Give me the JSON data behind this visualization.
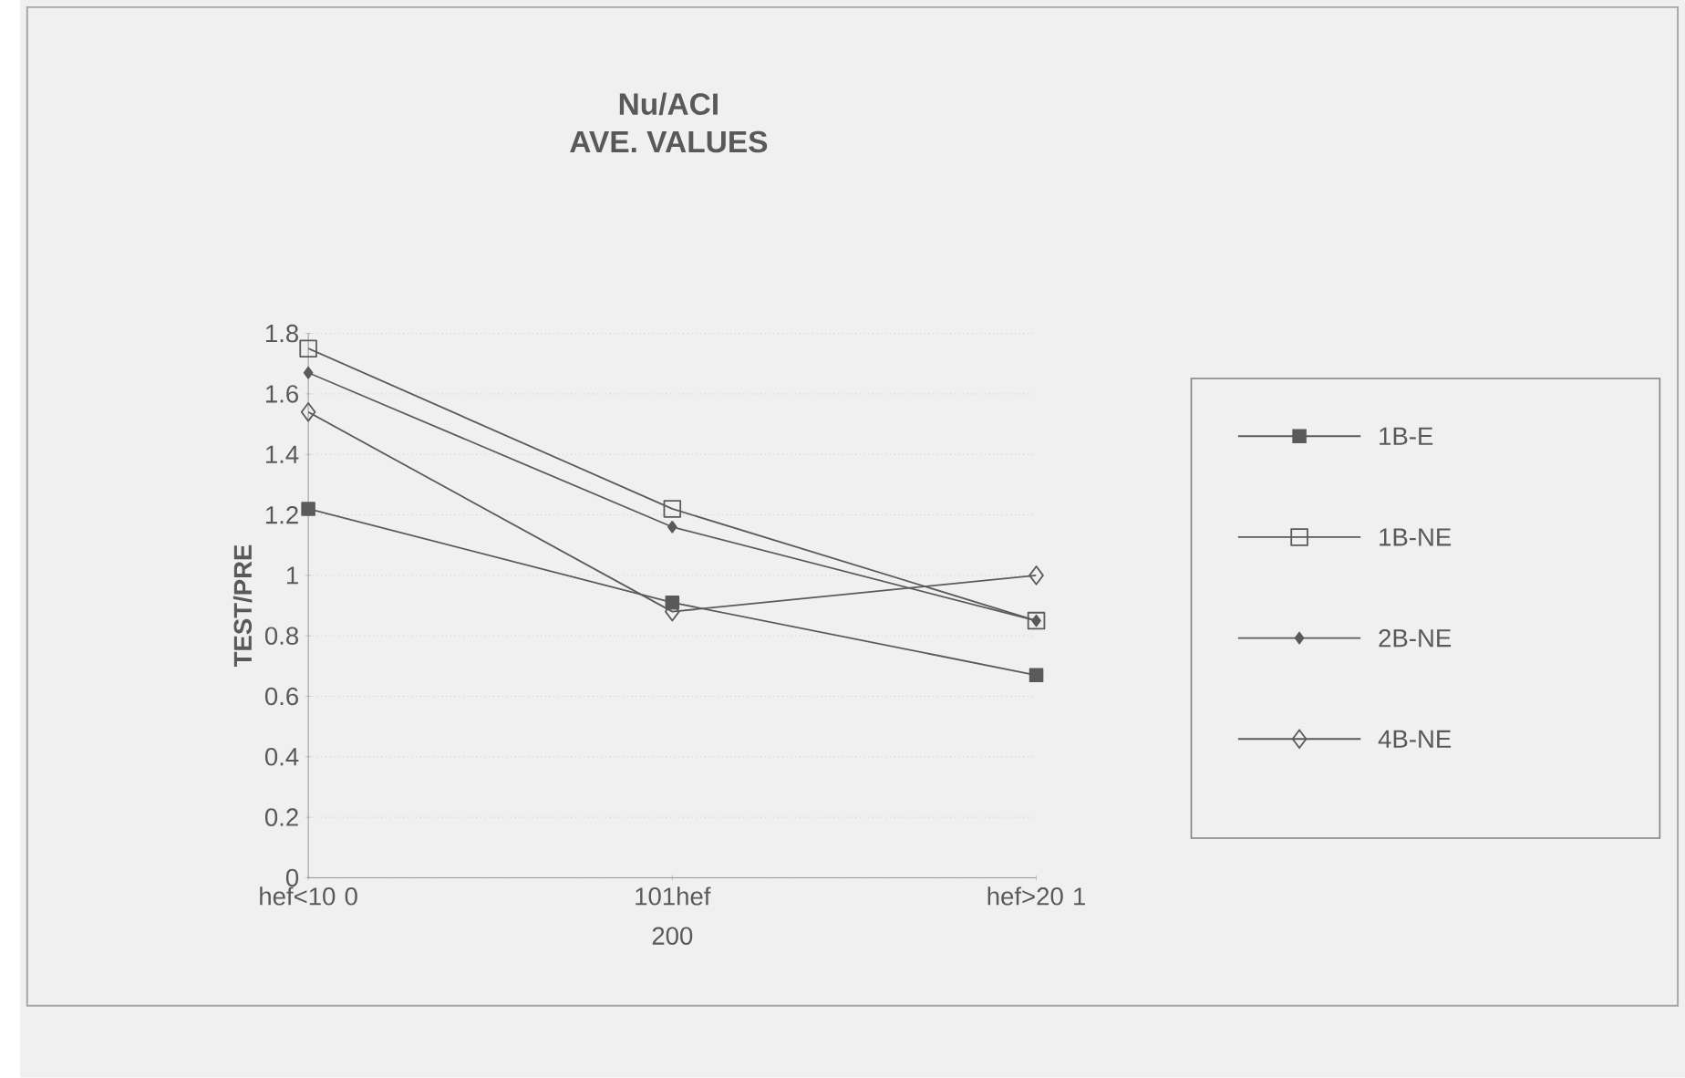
{
  "chart_data": {
    "type": "line",
    "title": "Nu/ACI",
    "subtitle": "AVE. VALUES",
    "ylabel": "TEST/PRE",
    "categories": [
      "hef<10 0",
      "101hef 200",
      "hef>20 1"
    ],
    "series": [
      {
        "name": "1B-E",
        "color": "#5a5a5a",
        "marker": "square*",
        "values": [
          1.22,
          0.91,
          0.67
        ]
      },
      {
        "name": "1B-NE",
        "color": "#5a5a5a",
        "marker": "square",
        "values": [
          1.75,
          1.22,
          0.85
        ]
      },
      {
        "name": "2B-NE",
        "color": "#5a5a5a",
        "marker": "diamond*",
        "values": [
          1.67,
          1.16,
          0.85
        ]
      },
      {
        "name": "4B-NE",
        "color": "#5a5a5a",
        "marker": "diamond",
        "values": [
          1.54,
          0.88,
          1.0
        ]
      }
    ],
    "ylim": [
      0,
      1.8
    ],
    "yticks": [
      0,
      0.2,
      0.4,
      0.6,
      0.8,
      1,
      1.2,
      1.4,
      1.6,
      1.8
    ],
    "grid": "y",
    "legend": "right",
    "line_style": "solid"
  }
}
